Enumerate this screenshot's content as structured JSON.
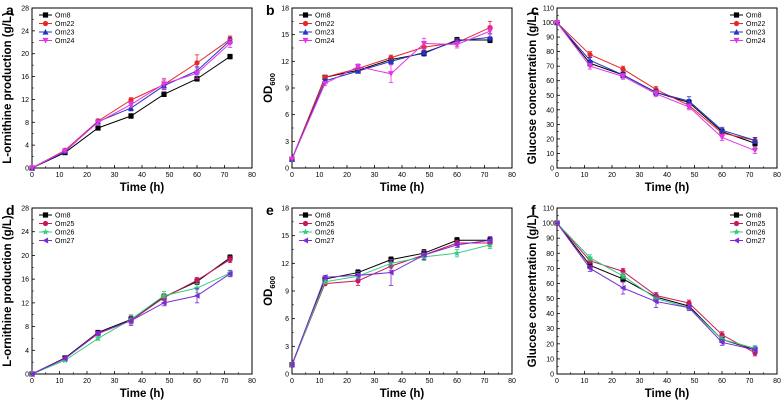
{
  "figure": {
    "background": "#ffffff"
  },
  "styles": {
    "Orn8": {
      "color": "#000000",
      "marker": "square"
    },
    "Orn22": {
      "color": "#e8262a",
      "marker": "circle"
    },
    "Orn23": {
      "color": "#2233c8",
      "marker": "triangle-up"
    },
    "Orn24": {
      "color": "#e135e6",
      "marker": "triangle-down"
    },
    "Orn25": {
      "color": "#c8175c",
      "marker": "circle"
    },
    "Orn26": {
      "color": "#33cc80",
      "marker": "star"
    },
    "Orn27": {
      "color": "#7a2ad6",
      "marker": "triangle-left"
    }
  },
  "chart_data": [
    {
      "type": "line",
      "panel_label": "a",
      "xlabel": "Time (h)",
      "ylabel": "L-ornithine production (g/L)",
      "xlim": [
        0,
        80
      ],
      "ylim": [
        0,
        28
      ],
      "xticks": [
        0,
        10,
        20,
        30,
        40,
        50,
        60,
        70,
        80
      ],
      "yticks": [
        0,
        4,
        8,
        12,
        16,
        20,
        24,
        28
      ],
      "x": [
        0,
        12,
        24,
        36,
        48,
        60,
        72
      ],
      "series": [
        {
          "name": "Orn8",
          "values": [
            0,
            2.7,
            7.0,
            9.1,
            12.9,
            15.6,
            19.5
          ],
          "err": [
            0,
            0.2,
            0.3,
            0.4,
            0.4,
            0.4,
            0.4
          ]
        },
        {
          "name": "Orn22",
          "values": [
            0,
            3.1,
            8.2,
            11.9,
            14.6,
            18.4,
            22.5
          ],
          "err": [
            0,
            0.2,
            0.4,
            0.4,
            0.8,
            1.4,
            0.6
          ]
        },
        {
          "name": "Orn23",
          "values": [
            0,
            2.9,
            8.1,
            10.5,
            14.4,
            17.0,
            22.3
          ],
          "err": [
            0,
            0.2,
            0.3,
            0.5,
            0.6,
            0.7,
            0.6
          ]
        },
        {
          "name": "Orn24",
          "values": [
            0,
            3.0,
            8.0,
            11.1,
            14.7,
            16.6,
            21.8
          ],
          "err": [
            0,
            0.2,
            0.4,
            0.5,
            1.0,
            0.9,
            0.7
          ]
        }
      ],
      "legend": "top-left"
    },
    {
      "type": "line",
      "panel_label": "b",
      "xlabel": "Time (h)",
      "ylabel": "OD",
      "ylabel_sub": "600",
      "xlim": [
        0,
        80
      ],
      "ylim": [
        0,
        18
      ],
      "xticks": [
        0,
        10,
        20,
        30,
        40,
        50,
        60,
        70,
        80
      ],
      "yticks": [
        0,
        3,
        6,
        9,
        12,
        15,
        18
      ],
      "x": [
        0,
        12,
        24,
        36,
        48,
        60,
        72
      ],
      "series": [
        {
          "name": "Orn8",
          "values": [
            1.0,
            10.2,
            11.0,
            12.2,
            12.9,
            14.4,
            14.4
          ],
          "err": [
            0,
            0.2,
            0.2,
            0.3,
            0.3,
            0.3,
            0.3
          ]
        },
        {
          "name": "Orn22",
          "values": [
            1.0,
            10.2,
            11.2,
            12.4,
            13.6,
            14.1,
            15.8
          ],
          "err": [
            0,
            0.2,
            0.3,
            0.3,
            0.5,
            0.4,
            0.7
          ]
        },
        {
          "name": "Orn23",
          "values": [
            1.0,
            9.8,
            10.9,
            12.0,
            13.0,
            14.3,
            14.7
          ],
          "err": [
            0,
            0.2,
            0.2,
            0.3,
            0.4,
            0.3,
            0.4
          ]
        },
        {
          "name": "Orn24",
          "values": [
            1.0,
            9.5,
            11.4,
            10.6,
            14.0,
            13.9,
            15.4
          ],
          "err": [
            0,
            0.2,
            0.3,
            1.0,
            0.6,
            0.4,
            0.6
          ]
        }
      ],
      "legend": "top-left"
    },
    {
      "type": "line",
      "panel_label": "c",
      "xlabel": "Time (h)",
      "ylabel": "Glucose concentration (g/L)",
      "xlim": [
        0,
        80
      ],
      "ylim": [
        0,
        110
      ],
      "xticks": [
        0,
        10,
        20,
        30,
        40,
        50,
        60,
        70,
        80
      ],
      "yticks": [
        0,
        10,
        20,
        30,
        40,
        50,
        60,
        70,
        80,
        90,
        100,
        110
      ],
      "x": [
        0,
        12,
        24,
        36,
        48,
        60,
        72
      ],
      "series": [
        {
          "name": "Orn8",
          "values": [
            100,
            72,
            64,
            52,
            45,
            25,
            17
          ],
          "err": [
            0,
            2,
            2,
            2,
            2,
            2,
            2
          ]
        },
        {
          "name": "Orn22",
          "values": [
            100,
            78,
            68,
            54,
            43,
            24,
            19
          ],
          "err": [
            0,
            2,
            2,
            2,
            2,
            2,
            2
          ]
        },
        {
          "name": "Orn23",
          "values": [
            100,
            74,
            64,
            52,
            46,
            26,
            19
          ],
          "err": [
            0,
            2,
            2,
            2,
            3,
            2,
            2
          ]
        },
        {
          "name": "Orn24",
          "values": [
            100,
            70,
            63,
            51,
            42,
            21,
            12
          ],
          "err": [
            0,
            2,
            2,
            2,
            2,
            2,
            2
          ]
        }
      ],
      "legend": "top-right"
    },
    {
      "type": "line",
      "panel_label": "d",
      "xlabel": "Time (h)",
      "ylabel": "L-ornithine production (g/L)",
      "xlim": [
        0,
        80
      ],
      "ylim": [
        0,
        28
      ],
      "xticks": [
        0,
        10,
        20,
        30,
        40,
        50,
        60,
        70,
        80
      ],
      "yticks": [
        0,
        4,
        8,
        12,
        16,
        20,
        24,
        28
      ],
      "x": [
        0,
        12,
        24,
        36,
        48,
        60,
        72
      ],
      "series": [
        {
          "name": "Orn8",
          "values": [
            0,
            2.7,
            7.0,
            9.2,
            13.0,
            15.6,
            19.6
          ],
          "err": [
            0,
            0.2,
            0.3,
            0.5,
            0.5,
            0.5,
            0.5
          ]
        },
        {
          "name": "Orn25",
          "values": [
            0,
            2.6,
            6.8,
            9.0,
            12.9,
            15.8,
            19.3
          ],
          "err": [
            0,
            0.2,
            0.3,
            0.5,
            0.5,
            0.5,
            0.5
          ]
        },
        {
          "name": "Orn26",
          "values": [
            0,
            2.3,
            6.0,
            9.2,
            13.2,
            14.5,
            17.0
          ],
          "err": [
            0,
            0.2,
            0.3,
            0.8,
            0.7,
            0.8,
            0.5
          ]
        },
        {
          "name": "Orn27",
          "values": [
            0,
            2.6,
            6.9,
            9.0,
            12.0,
            13.2,
            16.9
          ],
          "err": [
            0,
            0.2,
            0.3,
            0.8,
            0.5,
            1.2,
            0.5
          ]
        }
      ],
      "legend": "top-left"
    },
    {
      "type": "line",
      "panel_label": "e",
      "xlabel": "Time (h)",
      "ylabel": "OD",
      "ylabel_sub": "600",
      "xlim": [
        0,
        80
      ],
      "ylim": [
        0,
        18
      ],
      "xticks": [
        0,
        10,
        20,
        30,
        40,
        50,
        60,
        70,
        80
      ],
      "yticks": [
        0,
        3,
        6,
        9,
        12,
        15,
        18
      ],
      "x": [
        0,
        12,
        24,
        36,
        48,
        60,
        72
      ],
      "series": [
        {
          "name": "Orn8",
          "values": [
            1.0,
            10.3,
            11.0,
            12.4,
            13.1,
            14.5,
            14.5
          ],
          "err": [
            0,
            0.2,
            0.3,
            0.3,
            0.4,
            0.3,
            0.3
          ]
        },
        {
          "name": "Orn25",
          "values": [
            1.0,
            9.8,
            10.1,
            11.7,
            12.9,
            14.2,
            14.2
          ],
          "err": [
            0,
            0.2,
            0.5,
            0.5,
            0.5,
            0.3,
            0.4
          ]
        },
        {
          "name": "Orn26",
          "values": [
            1.0,
            10.0,
            10.6,
            12.0,
            12.7,
            13.1,
            14.0
          ],
          "err": [
            0,
            0.2,
            0.3,
            0.4,
            0.4,
            0.4,
            0.4
          ]
        },
        {
          "name": "Orn27",
          "values": [
            1.0,
            10.5,
            10.7,
            11.0,
            12.9,
            14.0,
            14.5
          ],
          "err": [
            0,
            0.2,
            0.4,
            1.4,
            0.5,
            0.3,
            0.4
          ]
        }
      ],
      "legend": "top-left"
    },
    {
      "type": "line",
      "panel_label": "f",
      "xlabel": "Time (h)",
      "ylabel": "Glucose concentration (g/L)",
      "xlim": [
        0,
        80
      ],
      "ylim": [
        0,
        110
      ],
      "xticks": [
        0,
        10,
        20,
        30,
        40,
        50,
        60,
        70,
        80
      ],
      "yticks": [
        0,
        10,
        20,
        30,
        40,
        50,
        60,
        70,
        80,
        90,
        100,
        110
      ],
      "x": [
        0,
        12,
        24,
        36,
        48,
        60,
        72
      ],
      "series": [
        {
          "name": "Orn8",
          "values": [
            100,
            72,
            63,
            51,
            45,
            23,
            16
          ],
          "err": [
            0,
            2,
            2,
            2,
            2,
            2,
            2
          ]
        },
        {
          "name": "Orn25",
          "values": [
            100,
            75,
            68,
            52,
            47,
            26,
            14
          ],
          "err": [
            0,
            2,
            2,
            2,
            2,
            2,
            2
          ]
        },
        {
          "name": "Orn26",
          "values": [
            100,
            77,
            65,
            50,
            44,
            23,
            17
          ],
          "err": [
            0,
            2,
            2,
            2,
            2,
            2,
            2
          ]
        },
        {
          "name": "Orn27",
          "values": [
            100,
            70,
            57,
            48,
            44,
            21,
            16
          ],
          "err": [
            0,
            2,
            4,
            4,
            2,
            2,
            2
          ]
        }
      ],
      "legend": "top-right"
    }
  ]
}
